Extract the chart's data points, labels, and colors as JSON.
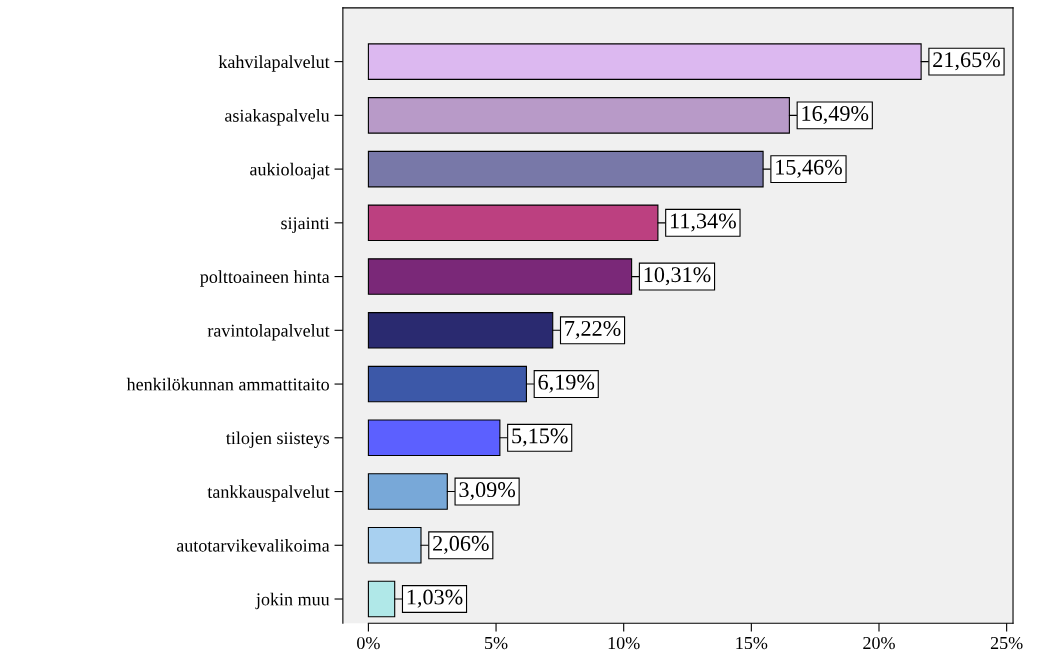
{
  "chart_data": {
    "type": "bar",
    "orientation": "horizontal",
    "categories": [
      "kahvilapalvelut",
      "asiakaspalvelu",
      "aukioloajat",
      "sijainti",
      "polttoaineen hinta",
      "ravintolapalvelut",
      "henkilökunnan ammattitaito",
      "tilojen siisteys",
      "tankkauspalvelut",
      "autotarvikevalikoima",
      "jokin muu"
    ],
    "values": [
      21.65,
      16.49,
      15.46,
      11.34,
      10.31,
      7.22,
      6.19,
      5.15,
      3.09,
      2.06,
      1.03
    ],
    "value_labels": [
      "21,65%",
      "16,49%",
      "15,46%",
      "11,34%",
      "10,31%",
      "7,22%",
      "6,19%",
      "5,15%",
      "3,09%",
      "2,06%",
      "1,03%"
    ],
    "colors": [
      "#dcb8f0",
      "#b89ac8",
      "#7878a8",
      "#bc4080",
      "#7a2878",
      "#2a2a70",
      "#3c58a8",
      "#5c60ff",
      "#78a8d8",
      "#a8d0f0",
      "#b0e8e8"
    ],
    "xlim": [
      -1,
      25.25
    ],
    "xticks": [
      {
        "value": 0,
        "label": "0%"
      },
      {
        "value": 5,
        "label": "5%"
      },
      {
        "value": 10,
        "label": "10%"
      },
      {
        "value": 15,
        "label": "15%"
      },
      {
        "value": 20,
        "label": "20%"
      },
      {
        "value": 25,
        "label": "25%"
      }
    ],
    "grid": false,
    "legend": false
  }
}
